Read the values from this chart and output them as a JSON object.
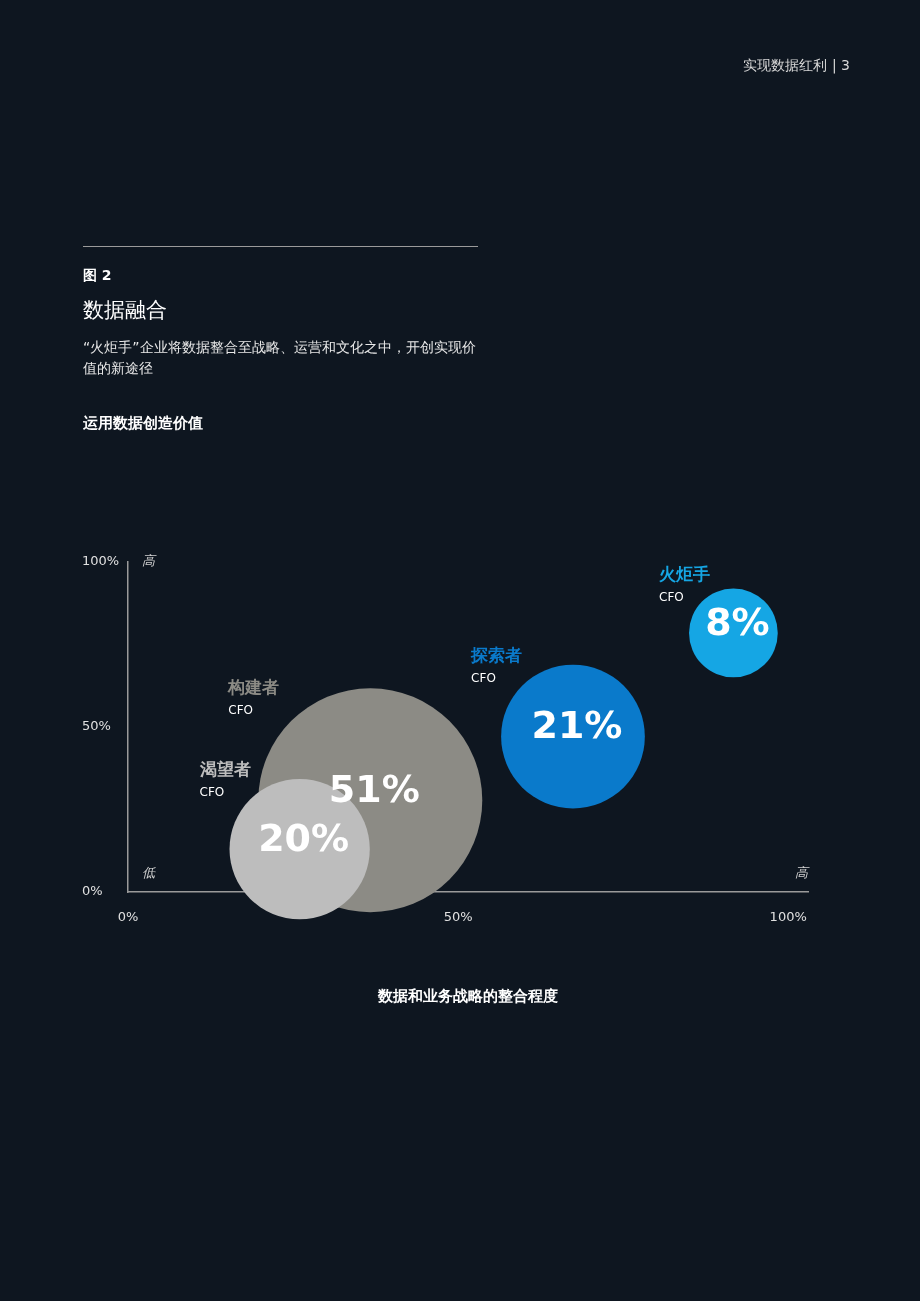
{
  "chart_data": {
    "type": "bubble",
    "title": "数据融合",
    "subtitle": "“火炬手”企业将数据整合至战略、运营和文化之中，开创实现价值的新途径",
    "xlabel": "数据和业务战略的整合程度",
    "annotations": [
      "实现数据红利 | 3",
      "图 2",
      "运用数据创造价值",
      "高",
      "低",
      "高",
      "CFO",
      "CFO",
      "CFO",
      "CFO"
    ],
    "xlim": [
      0,
      103
    ],
    "ylim": [
      0,
      100
    ],
    "xticks": [
      {
        "value": 0,
        "label": "0%"
      },
      {
        "value": 50,
        "label": "50%"
      },
      {
        "value": 100,
        "label": "100%"
      }
    ],
    "yticks": [
      {
        "value": 0,
        "label": "0%"
      },
      {
        "value": 50,
        "label": "50%"
      },
      {
        "value": 100,
        "label": "100%"
      }
    ],
    "grid": false,
    "legend": false,
    "series": [
      {
        "name": "渴望者",
        "color": "#bdbdbd",
        "x": [
          26
        ],
        "values": [
          13
        ],
        "sizes": [
          20
        ],
        "value_labels": [
          "20%"
        ]
      },
      {
        "name": "构建者",
        "color": "#8c8b85",
        "x": [
          36.7
        ],
        "values": [
          27.8
        ],
        "sizes": [
          51
        ],
        "value_labels": [
          "51%"
        ]
      },
      {
        "name": "探索者",
        "color": "#0a7acb",
        "x": [
          67.4
        ],
        "values": [
          47.1
        ],
        "sizes": [
          21
        ],
        "value_labels": [
          "21%"
        ]
      },
      {
        "name": "火炬手",
        "color": "#15a6e4",
        "x": [
          91.7
        ],
        "values": [
          78.5
        ],
        "sizes": [
          8
        ],
        "value_labels": [
          "8%"
        ]
      }
    ]
  }
}
